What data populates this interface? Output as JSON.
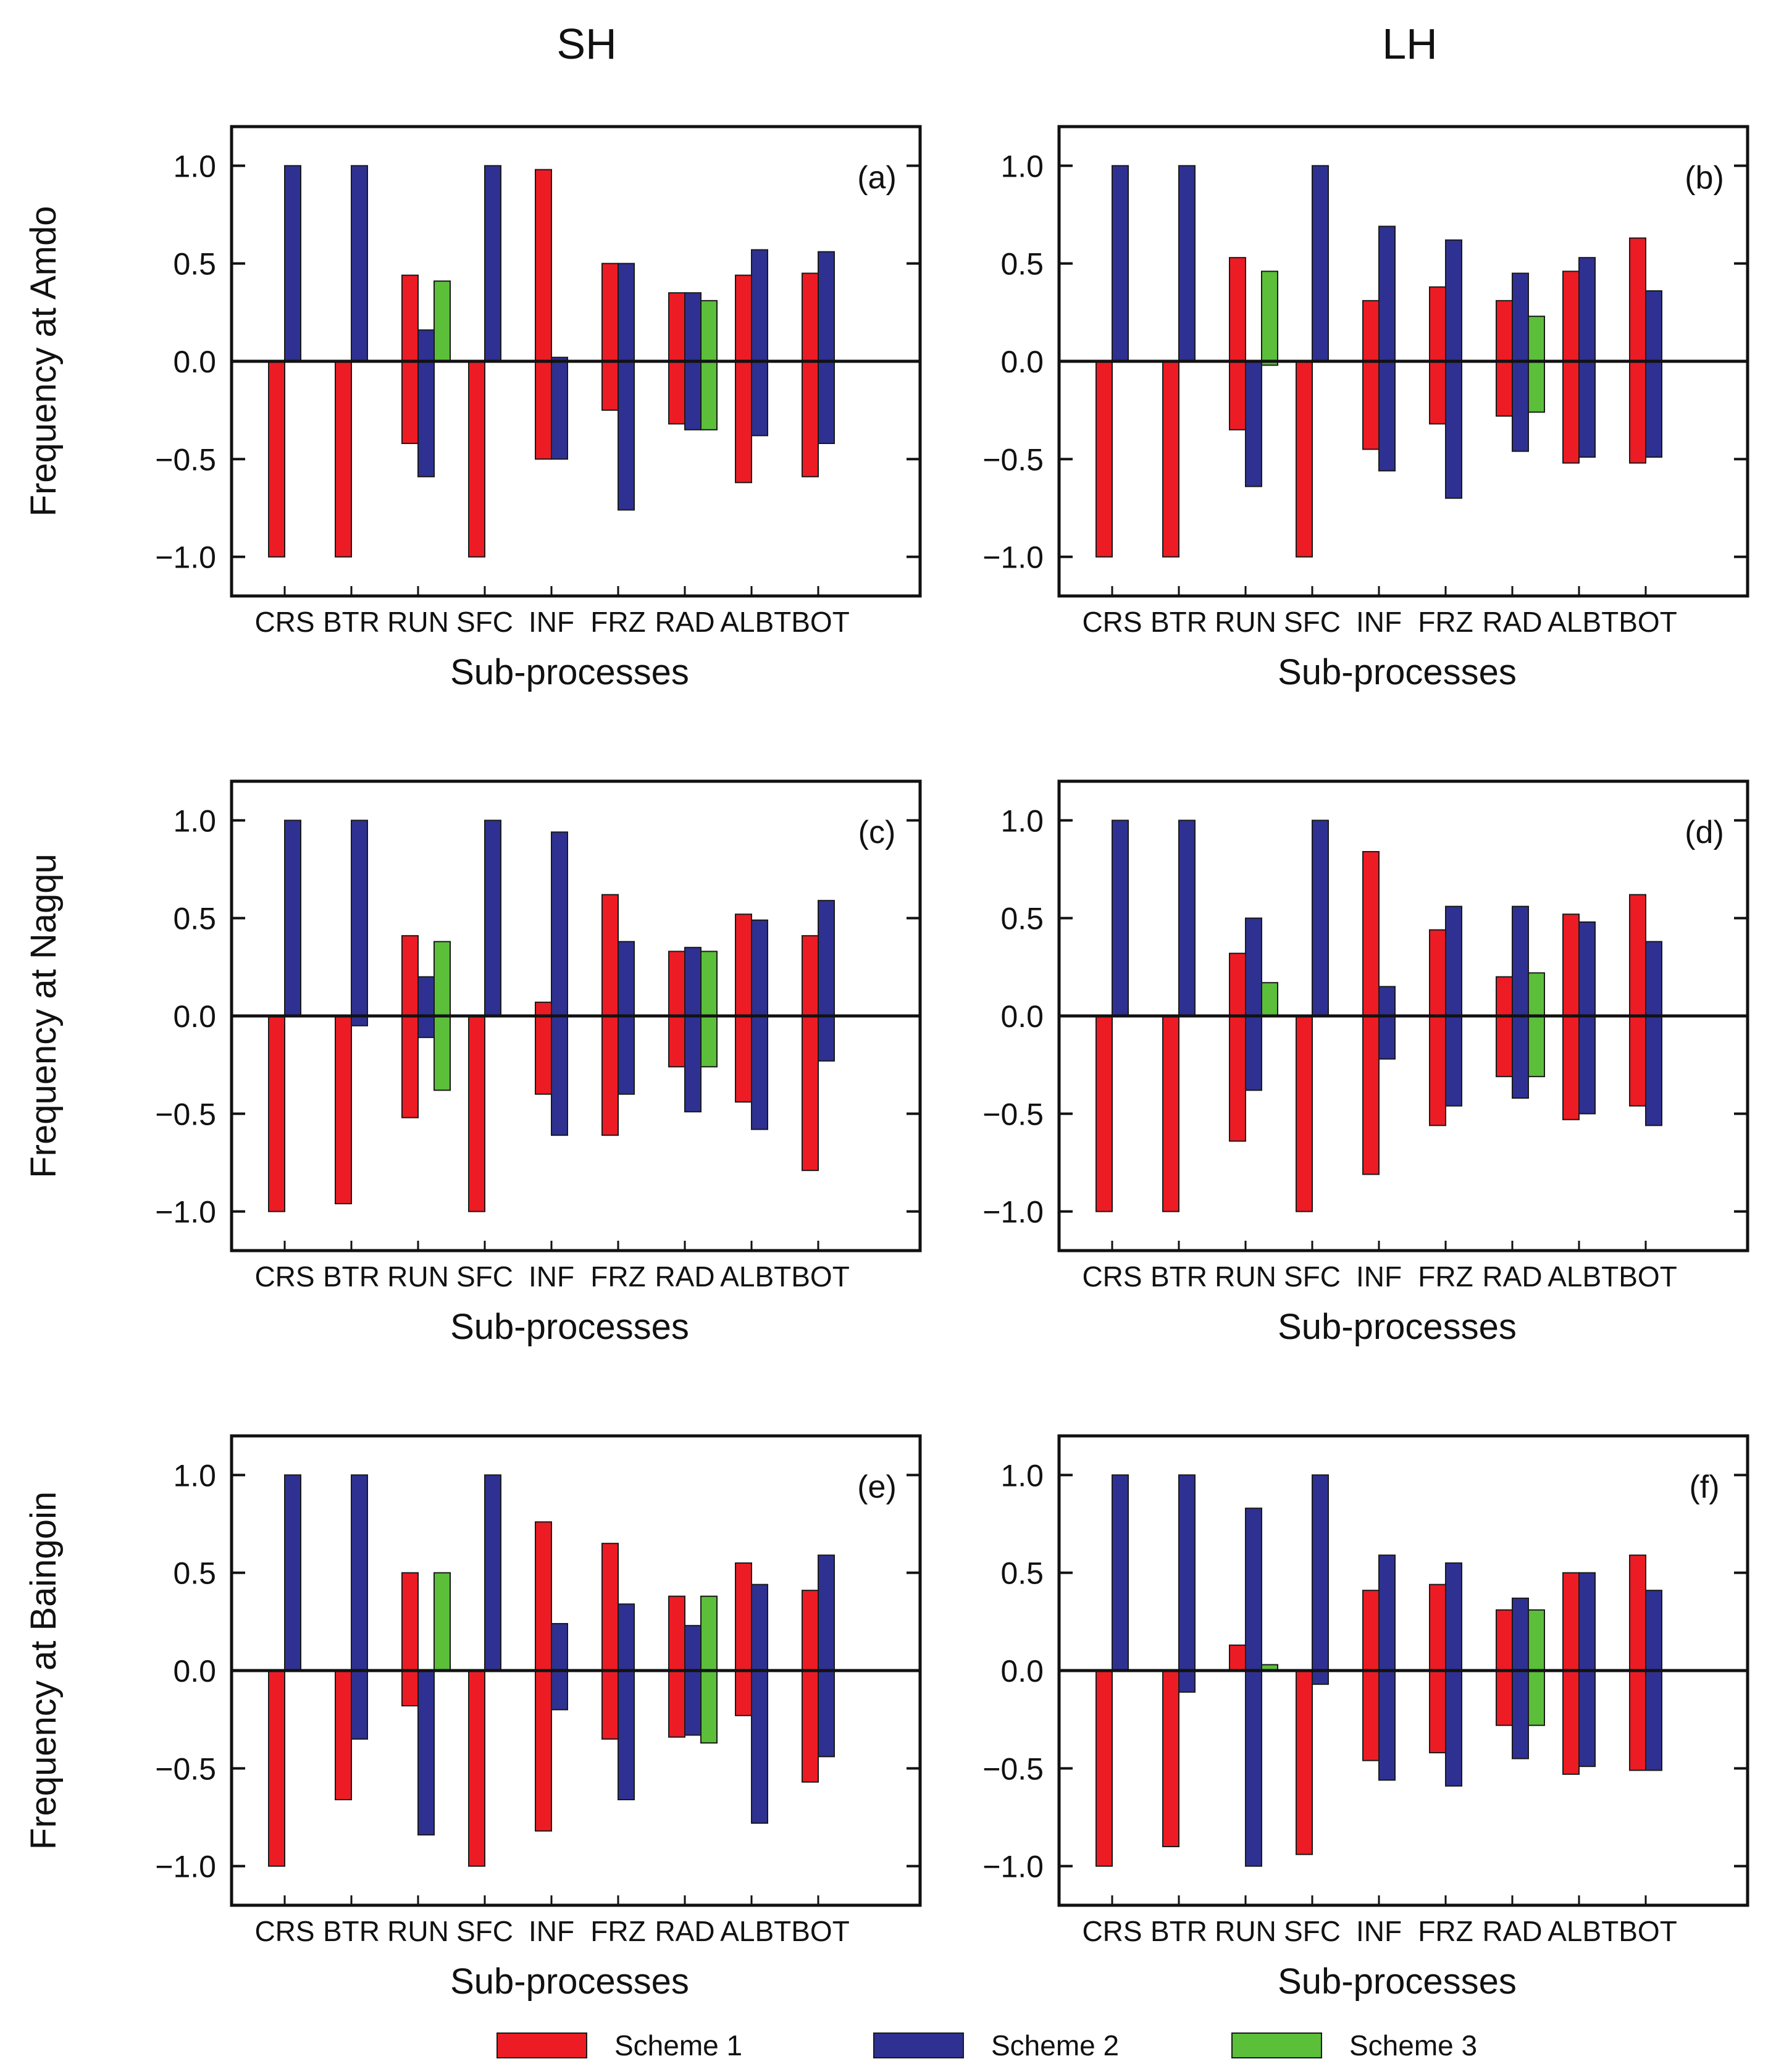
{
  "figure": {
    "column_titles": [
      "SH",
      "LH"
    ],
    "legend": [
      {
        "name": "Scheme 1",
        "color": "#ed1c24"
      },
      {
        "name": "Scheme 2",
        "color": "#2e3192"
      },
      {
        "name": "Scheme 3",
        "color": "#5bbf3a"
      }
    ]
  },
  "chart_data": [
    {
      "type": "bar",
      "panel": "(a)",
      "column": "SH",
      "ylabel": "Frequency at Amdo",
      "xlabel": "Sub-processes",
      "categories": [
        "CRS",
        "BTR",
        "RUN",
        "SFC",
        "INF",
        "FRZ",
        "RAD",
        "ALB",
        "TBOT"
      ],
      "category_labels": [
        "CRS",
        "BTR",
        "RUN",
        "SFC",
        "INF",
        "FRZ",
        "RAD",
        "ALBTBOT"
      ],
      "ylim": [
        -1.2,
        1.2
      ],
      "yticks": [
        "1.0",
        "0.5",
        "0.0",
        "−0.5",
        "−1.0"
      ],
      "series": [
        {
          "name": "Scheme 1",
          "pos": [
            0,
            0,
            0.44,
            0,
            0.98,
            0.5,
            0.35,
            0.44,
            0.45
          ],
          "neg": [
            -1.0,
            -1.0,
            -0.42,
            -1.0,
            -0.5,
            -0.25,
            -0.32,
            -0.62,
            -0.59
          ]
        },
        {
          "name": "Scheme 2",
          "pos": [
            1.0,
            1.0,
            0.16,
            1.0,
            0.02,
            0.5,
            0.35,
            0.57,
            0.56
          ],
          "neg": [
            0,
            0,
            -0.59,
            0,
            -0.5,
            -0.76,
            -0.35,
            -0.38,
            -0.42
          ]
        },
        {
          "name": "Scheme 3",
          "pos": [
            null,
            null,
            0.41,
            null,
            null,
            null,
            0.31,
            null,
            null
          ],
          "neg": [
            null,
            null,
            0,
            null,
            null,
            null,
            -0.35,
            null,
            null
          ]
        }
      ]
    },
    {
      "type": "bar",
      "panel": "(b)",
      "column": "LH",
      "ylabel": "",
      "xlabel": "Sub-processes",
      "categories": [
        "CRS",
        "BTR",
        "RUN",
        "SFC",
        "INF",
        "FRZ",
        "RAD",
        "ALB",
        "TBOT"
      ],
      "category_labels": [
        "CRS",
        "BTR",
        "RUN",
        "SFC",
        "INF",
        "FRZ",
        "RAD",
        "ALBTBOT"
      ],
      "ylim": [
        -1.2,
        1.2
      ],
      "yticks": [
        "1.0",
        "0.5",
        "0.0",
        "−0.5",
        "−1.0"
      ],
      "series": [
        {
          "name": "Scheme 1",
          "pos": [
            0,
            0,
            0.53,
            0,
            0.31,
            0.38,
            0.31,
            0.46,
            0.63
          ],
          "neg": [
            -1.0,
            -1.0,
            -0.35,
            -1.0,
            -0.45,
            -0.32,
            -0.28,
            -0.52,
            -0.52
          ]
        },
        {
          "name": "Scheme 2",
          "pos": [
            1.0,
            1.0,
            0,
            1.0,
            0.69,
            0.62,
            0.45,
            0.53,
            0.36
          ],
          "neg": [
            0,
            0,
            -0.64,
            0,
            -0.56,
            -0.7,
            -0.46,
            -0.49,
            -0.49
          ]
        },
        {
          "name": "Scheme 3",
          "pos": [
            null,
            null,
            0.46,
            null,
            null,
            null,
            0.23,
            null,
            null
          ],
          "neg": [
            null,
            null,
            -0.02,
            null,
            null,
            null,
            -0.26,
            null,
            null
          ]
        }
      ]
    },
    {
      "type": "bar",
      "panel": "(c)",
      "column": "SH",
      "ylabel": "Frequency at Nagqu",
      "xlabel": "Sub-processes",
      "categories": [
        "CRS",
        "BTR",
        "RUN",
        "SFC",
        "INF",
        "FRZ",
        "RAD",
        "ALB",
        "TBOT"
      ],
      "category_labels": [
        "CRS",
        "BTR",
        "RUN",
        "SFC",
        "INF",
        "FRZ",
        "RAD",
        "ALBTBOT"
      ],
      "ylim": [
        -1.2,
        1.2
      ],
      "yticks": [
        "1.0",
        "0.5",
        "0.0",
        "−0.5",
        "−1.0"
      ],
      "series": [
        {
          "name": "Scheme 1",
          "pos": [
            0,
            0,
            0.41,
            0,
            0.07,
            0.62,
            0.33,
            0.52,
            0.41
          ],
          "neg": [
            -1.0,
            -0.96,
            -0.52,
            -1.0,
            -0.4,
            -0.61,
            -0.26,
            -0.44,
            -0.79
          ]
        },
        {
          "name": "Scheme 2",
          "pos": [
            1.0,
            1.0,
            0.2,
            1.0,
            0.94,
            0.38,
            0.35,
            0.49,
            0.59
          ],
          "neg": [
            0,
            -0.05,
            -0.11,
            0,
            -0.61,
            -0.4,
            -0.49,
            -0.58,
            -0.23
          ]
        },
        {
          "name": "Scheme 3",
          "pos": [
            null,
            null,
            0.38,
            null,
            null,
            null,
            0.33,
            null,
            null
          ],
          "neg": [
            null,
            null,
            -0.38,
            null,
            null,
            null,
            -0.26,
            null,
            null
          ]
        }
      ]
    },
    {
      "type": "bar",
      "panel": "(d)",
      "column": "LH",
      "ylabel": "",
      "xlabel": "Sub-processes",
      "categories": [
        "CRS",
        "BTR",
        "RUN",
        "SFC",
        "INF",
        "FRZ",
        "RAD",
        "ALB",
        "TBOT"
      ],
      "category_labels": [
        "CRS",
        "BTR",
        "RUN",
        "SFC",
        "INF",
        "FRZ",
        "RAD",
        "ALBTBOT"
      ],
      "ylim": [
        -1.2,
        1.2
      ],
      "yticks": [
        "1.0",
        "0.5",
        "0.0",
        "−0.5",
        "−1.0"
      ],
      "series": [
        {
          "name": "Scheme 1",
          "pos": [
            0,
            0,
            0.32,
            0,
            0.84,
            0.44,
            0.2,
            0.52,
            0.62
          ],
          "neg": [
            -1.0,
            -1.0,
            -0.64,
            -1.0,
            -0.81,
            -0.56,
            -0.31,
            -0.53,
            -0.46
          ]
        },
        {
          "name": "Scheme 2",
          "pos": [
            1.0,
            1.0,
            0.5,
            1.0,
            0.15,
            0.56,
            0.56,
            0.48,
            0.38
          ],
          "neg": [
            0,
            0,
            -0.38,
            0,
            -0.22,
            -0.46,
            -0.42,
            -0.5,
            -0.56
          ]
        },
        {
          "name": "Scheme 3",
          "pos": [
            null,
            null,
            0.17,
            null,
            null,
            null,
            0.22,
            null,
            null
          ],
          "neg": [
            null,
            null,
            0,
            null,
            null,
            null,
            -0.31,
            null,
            null
          ]
        }
      ]
    },
    {
      "type": "bar",
      "panel": "(e)",
      "column": "SH",
      "ylabel": "Frequency at Baingoin",
      "xlabel": "Sub-processes",
      "categories": [
        "CRS",
        "BTR",
        "RUN",
        "SFC",
        "INF",
        "FRZ",
        "RAD",
        "ALB",
        "TBOT"
      ],
      "category_labels": [
        "CRS",
        "BTR",
        "RUN",
        "SFC",
        "INF",
        "FRZ",
        "RAD",
        "ALBTBOT"
      ],
      "ylim": [
        -1.2,
        1.2
      ],
      "yticks": [
        "1.0",
        "0.5",
        "0.0",
        "−0.5",
        "−1.0"
      ],
      "series": [
        {
          "name": "Scheme 1",
          "pos": [
            0,
            0,
            0.5,
            0,
            0.76,
            0.65,
            0.38,
            0.55,
            0.41
          ],
          "neg": [
            -1.0,
            -0.66,
            -0.18,
            -1.0,
            -0.82,
            -0.35,
            -0.34,
            -0.23,
            -0.57
          ]
        },
        {
          "name": "Scheme 2",
          "pos": [
            1.0,
            1.0,
            0,
            1.0,
            0.24,
            0.34,
            0.23,
            0.44,
            0.59
          ],
          "neg": [
            0,
            -0.35,
            -0.84,
            0,
            -0.2,
            -0.66,
            -0.33,
            -0.78,
            -0.44
          ]
        },
        {
          "name": "Scheme 3",
          "pos": [
            null,
            null,
            0.5,
            null,
            null,
            null,
            0.38,
            null,
            null
          ],
          "neg": [
            null,
            null,
            0,
            null,
            null,
            null,
            -0.37,
            null,
            null
          ]
        }
      ]
    },
    {
      "type": "bar",
      "panel": "(f)",
      "column": "LH",
      "ylabel": "",
      "xlabel": "Sub-processes",
      "categories": [
        "CRS",
        "BTR",
        "RUN",
        "SFC",
        "INF",
        "FRZ",
        "RAD",
        "ALB",
        "TBOT"
      ],
      "category_labels": [
        "CRS",
        "BTR",
        "RUN",
        "SFC",
        "INF",
        "FRZ",
        "RAD",
        "ALBTBOT"
      ],
      "ylim": [
        -1.2,
        1.2
      ],
      "yticks": [
        "1.0",
        "0.5",
        "0.0",
        "−0.5",
        "−1.0"
      ],
      "series": [
        {
          "name": "Scheme 1",
          "pos": [
            0,
            0,
            0.13,
            0,
            0.41,
            0.44,
            0.31,
            0.5,
            0.59
          ],
          "neg": [
            -1.0,
            -0.9,
            0,
            -0.94,
            -0.46,
            -0.42,
            -0.28,
            -0.53,
            -0.51
          ]
        },
        {
          "name": "Scheme 2",
          "pos": [
            1.0,
            1.0,
            0.83,
            1.0,
            0.59,
            0.55,
            0.37,
            0.5,
            0.41
          ],
          "neg": [
            0,
            -0.11,
            -1.0,
            -0.07,
            -0.56,
            -0.59,
            -0.45,
            -0.49,
            -0.51
          ]
        },
        {
          "name": "Scheme 3",
          "pos": [
            null,
            null,
            0.03,
            null,
            null,
            null,
            0.31,
            null,
            null
          ],
          "neg": [
            null,
            null,
            0,
            null,
            null,
            null,
            -0.28,
            null,
            null
          ]
        }
      ]
    }
  ]
}
